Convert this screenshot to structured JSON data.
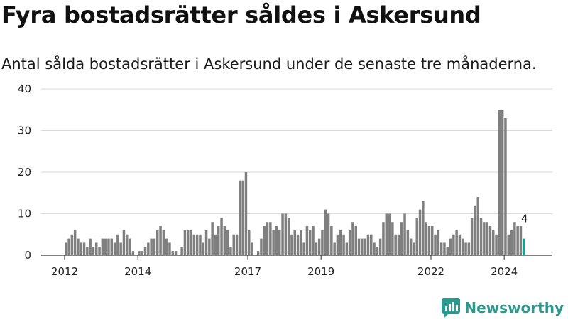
{
  "header": {
    "title": "Fyra bostadsrätter såldes i Askersund",
    "subtitle": "Antal sålda bostadsrätter i Askersund under de senaste tre månaderna."
  },
  "brand": {
    "name": "Newsworthy",
    "icon": "chart-speech-bubble-icon",
    "color": "#2b9a8e"
  },
  "chart_data": {
    "type": "bar",
    "title": "Fyra bostadsrätter såldes i Askersund",
    "subtitle": "Antal sålda bostadsrätter i Askersund under de senaste tre månaderna.",
    "xlabel": "",
    "ylabel": "",
    "ylim": [
      0,
      40
    ],
    "yticks": [
      0,
      10,
      20,
      30,
      40
    ],
    "xtick_labels": [
      "2012",
      "2014",
      "2017",
      "2019",
      "2022",
      "2024"
    ],
    "grid": true,
    "colors": {
      "bar": "#7f7f7f",
      "highlight": "#1f9e8f"
    },
    "values": [
      3,
      4,
      5,
      6,
      4,
      3,
      3,
      2,
      4,
      2,
      3,
      2,
      4,
      4,
      4,
      4,
      3,
      5,
      3,
      6,
      5,
      4,
      1,
      0,
      1,
      1,
      2,
      3,
      4,
      4,
      6,
      7,
      6,
      4,
      3,
      1,
      1,
      0,
      2,
      6,
      6,
      6,
      5,
      5,
      5,
      3,
      6,
      4,
      8,
      5,
      7,
      9,
      7,
      6,
      2,
      5,
      5,
      18,
      18,
      20,
      6,
      3,
      0,
      1,
      4,
      7,
      8,
      8,
      6,
      7,
      6,
      10,
      10,
      9,
      5,
      6,
      5,
      6,
      3,
      7,
      6,
      7,
      3,
      4,
      6,
      11,
      10,
      7,
      3,
      5,
      6,
      5,
      3,
      6,
      8,
      7,
      4,
      4,
      4,
      5,
      5,
      3,
      2,
      4,
      8,
      10,
      10,
      8,
      5,
      5,
      8,
      10,
      6,
      4,
      3,
      9,
      11,
      13,
      8,
      7,
      7,
      5,
      6,
      3,
      3,
      2,
      4,
      5,
      6,
      5,
      4,
      3,
      3,
      9,
      12,
      14,
      9,
      8,
      8,
      7,
      6,
      5,
      35,
      35,
      33,
      5,
      6,
      8,
      7,
      7,
      4
    ],
    "highlight_last": true,
    "last_value_label": "4"
  }
}
